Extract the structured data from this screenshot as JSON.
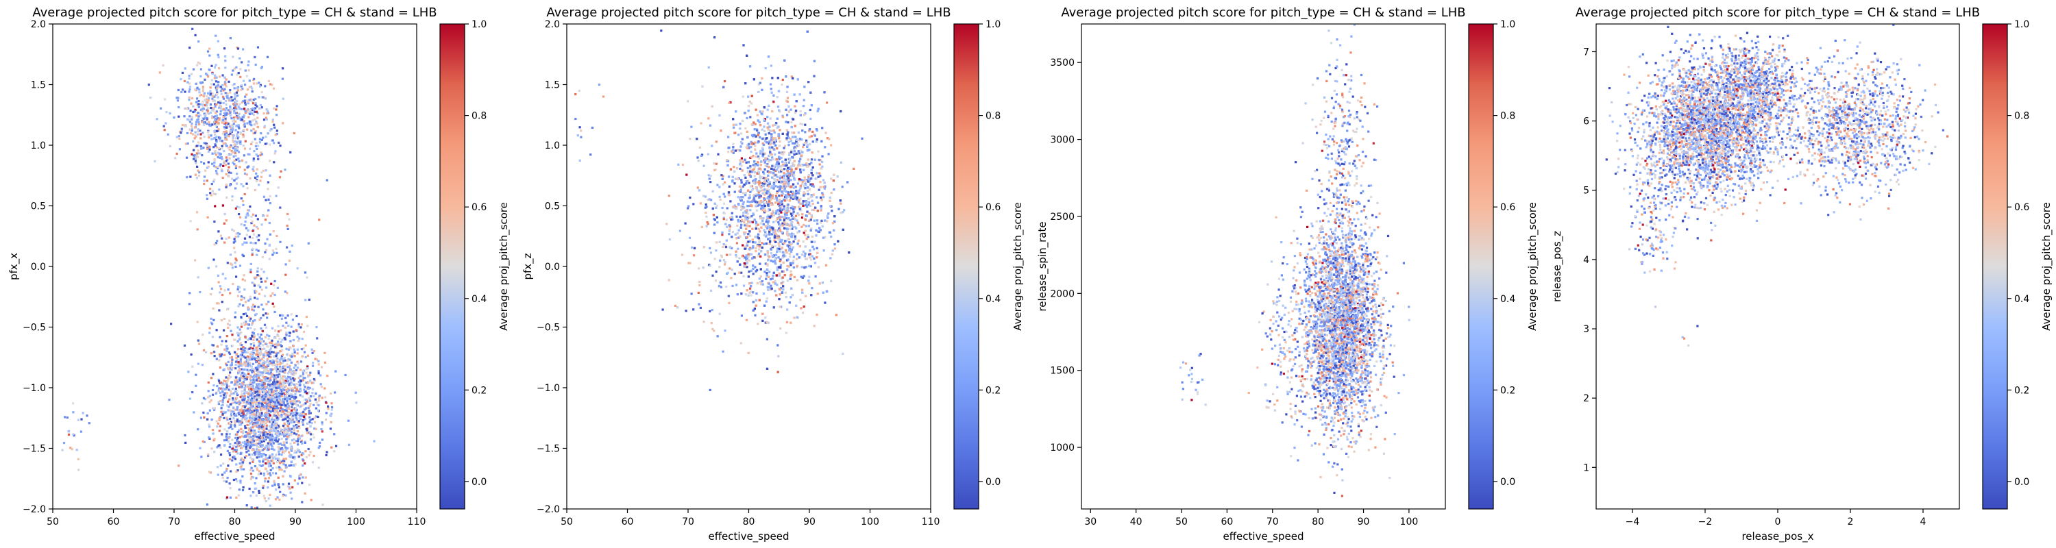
{
  "chart_data": [
    {
      "type": "scatter",
      "title": "Average projected pitch score for pitch_type = CH & stand = LHB",
      "xlabel": "effective_speed",
      "ylabel": "pfx_x",
      "xlim": [
        50,
        110
      ],
      "ylim": [
        -2.0,
        2.0
      ],
      "xticks": [
        50,
        60,
        70,
        80,
        90,
        100,
        110
      ],
      "yticks": [
        -2.0,
        -1.5,
        -1.0,
        -0.5,
        0.0,
        0.5,
        1.0,
        1.5,
        2.0
      ],
      "ytick_labels": [
        "−2.0",
        "−1.5",
        "−1.0",
        "−0.5",
        "0.0",
        "0.5",
        "1.0",
        "1.5",
        "2.0"
      ],
      "colorbar": {
        "label": "Average proj_pitch_score",
        "ticks": [
          0.0,
          0.2,
          0.4,
          0.6,
          0.8,
          1.0
        ],
        "tick_labels": [
          "0.0",
          "0.2",
          "0.4",
          "0.6",
          "0.8",
          "1.0"
        ],
        "cmap": "coolwarm"
      },
      "clusters": [
        {
          "cx": 85,
          "cy": -1.15,
          "sx": 4.2,
          "sy": 0.32,
          "n": 2600
        },
        {
          "cx": 78,
          "cy": 1.2,
          "sx": 4.0,
          "sy": 0.25,
          "n": 900
        },
        {
          "cx": 82,
          "cy": 0.05,
          "sx": 4.0,
          "sy": 0.55,
          "n": 380
        },
        {
          "cx": 53,
          "cy": -1.4,
          "sx": 1.5,
          "sy": 0.12,
          "n": 22
        }
      ],
      "grid": false
    },
    {
      "type": "scatter",
      "title": "Average projected pitch score for pitch_type = CH & stand = LHB",
      "xlabel": "effective_speed",
      "ylabel": "pfx_z",
      "xlim": [
        50,
        110
      ],
      "ylim": [
        -2.0,
        2.0
      ],
      "xticks": [
        50,
        60,
        70,
        80,
        90,
        100,
        110
      ],
      "yticks": [
        -2.0,
        -1.5,
        -1.0,
        -0.5,
        0.0,
        0.5,
        1.0,
        1.5,
        2.0
      ],
      "ytick_labels": [
        "−2.0",
        "−1.5",
        "−1.0",
        "−0.5",
        "0.0",
        "0.5",
        "1.0",
        "1.5",
        "2.0"
      ],
      "colorbar": {
        "label": "Average proj_pitch_score",
        "ticks": [
          0.0,
          0.2,
          0.4,
          0.6,
          0.8,
          1.0
        ],
        "tick_labels": [
          "0.0",
          "0.2",
          "0.4",
          "0.6",
          "0.8",
          "1.0"
        ],
        "cmap": "coolwarm"
      },
      "clusters": [
        {
          "cx": 84.5,
          "cy": 0.55,
          "sx": 4.3,
          "sy": 0.42,
          "n": 3200
        },
        {
          "cx": 75,
          "cy": 0.35,
          "sx": 4.0,
          "sy": 0.5,
          "n": 180
        },
        {
          "cx": 52.5,
          "cy": 1.2,
          "sx": 1.5,
          "sy": 0.18,
          "n": 14
        }
      ],
      "grid": false
    },
    {
      "type": "scatter",
      "title": "Average projected pitch score for pitch_type = CH & stand = LHB",
      "xlabel": "effective_speed",
      "ylabel": "release_spin_rate",
      "xlim": [
        28,
        108
      ],
      "ylim": [
        600,
        3750
      ],
      "xticks": [
        30,
        40,
        50,
        60,
        70,
        80,
        90,
        100
      ],
      "yticks": [
        1000,
        1500,
        2000,
        2500,
        3000,
        3500
      ],
      "ytick_labels": [
        "1000",
        "1500",
        "2000",
        "2500",
        "3000",
        "3500"
      ],
      "colorbar": {
        "label": "Average proj_pitch_score",
        "ticks": [
          0.0,
          0.2,
          0.4,
          0.6,
          0.8,
          1.0
        ],
        "tick_labels": [
          "0.0",
          "0.2",
          "0.4",
          "0.6",
          "0.8",
          "1.0"
        ],
        "cmap": "coolwarm"
      },
      "clusters": [
        {
          "cx": 85,
          "cy": 1800,
          "sx": 4.2,
          "sy": 330,
          "n": 3000
        },
        {
          "cx": 85.5,
          "cy": 2950,
          "sx": 2.8,
          "sy": 320,
          "n": 280
        },
        {
          "cx": 73,
          "cy": 1650,
          "sx": 3.0,
          "sy": 260,
          "n": 150
        },
        {
          "cx": 53,
          "cy": 1450,
          "sx": 2.0,
          "sy": 90,
          "n": 22
        }
      ],
      "grid": false
    },
    {
      "type": "scatter",
      "title": "Average projected pitch score for pitch_type = CH & stand = LHB",
      "xlabel": "release_pos_x",
      "ylabel": "release_pos_z",
      "xlim": [
        -5.0,
        5.0
      ],
      "ylim": [
        0.4,
        7.4
      ],
      "xticks": [
        -4,
        -2,
        0,
        2,
        4
      ],
      "xtick_labels": [
        "−4",
        "−2",
        "0",
        "2",
        "4"
      ],
      "yticks": [
        1,
        2,
        3,
        4,
        5,
        6,
        7
      ],
      "ytick_labels": [
        "1",
        "2",
        "3",
        "4",
        "5",
        "6",
        "7"
      ],
      "colorbar": {
        "label": "Average proj_pitch_score",
        "ticks": [
          0.0,
          0.2,
          0.4,
          0.6,
          0.8,
          1.0
        ],
        "tick_labels": [
          "0.0",
          "0.2",
          "0.4",
          "0.6",
          "0.8",
          "1.0"
        ],
        "cmap": "coolwarm"
      },
      "clusters": [
        {
          "cx": -1.9,
          "cy": 5.9,
          "sx": 0.9,
          "sy": 0.48,
          "n": 3000
        },
        {
          "cx": -0.6,
          "cy": 6.5,
          "sx": 0.6,
          "sy": 0.3,
          "n": 700
        },
        {
          "cx": 2.1,
          "cy": 5.9,
          "sx": 0.9,
          "sy": 0.45,
          "n": 1100
        },
        {
          "cx": -3.4,
          "cy": 4.7,
          "sx": 0.35,
          "sy": 0.45,
          "n": 180
        },
        {
          "cx": -2.4,
          "cy": 2.9,
          "sx": 0.25,
          "sy": 0.08,
          "n": 4
        }
      ],
      "grid": false
    }
  ]
}
